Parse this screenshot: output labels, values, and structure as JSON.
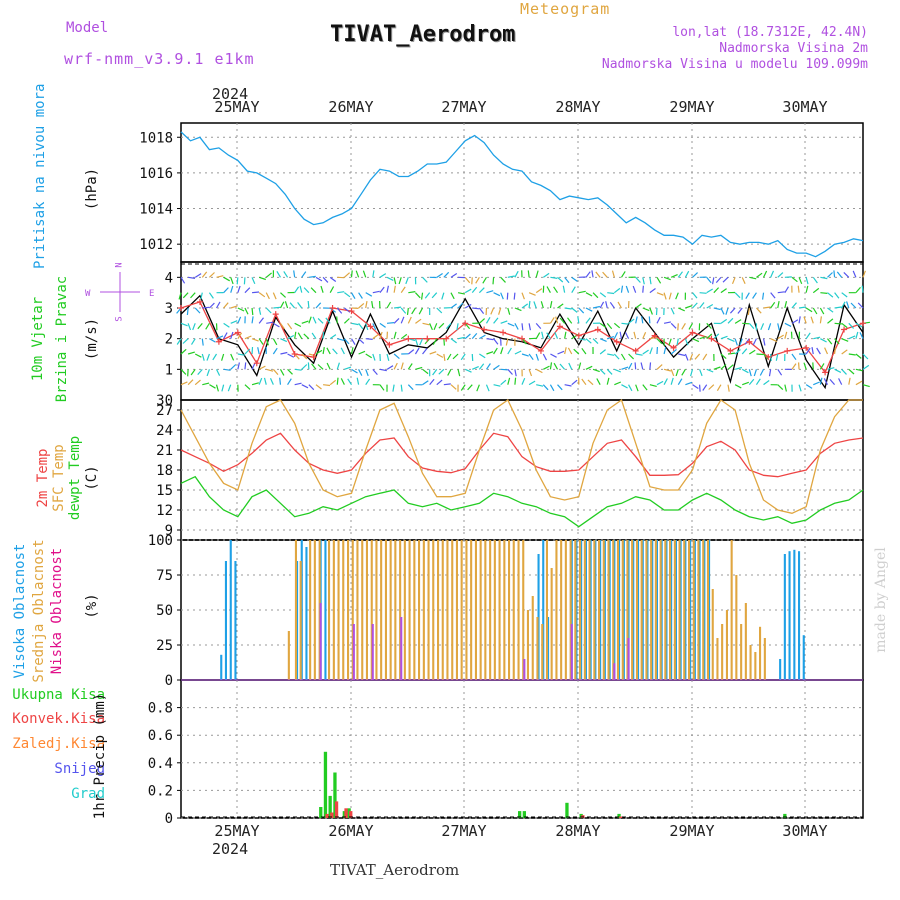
{
  "header": {
    "model_label": "Model",
    "model_name": "wrf-nmm_v3.9.1 e1km",
    "product": "Meteogram",
    "station": "TIVAT_Aerodrom",
    "lonlat": "lon,lat (18.7312E, 42.4N)",
    "elevation": "Nadmorska Visina 2m",
    "model_elevation": "Nadmorska Visina u modelu 109.099m",
    "footer_station": "TIVAT_Aerodrom",
    "credit": "made by Angel"
  },
  "colors": {
    "blue": "#1ea0e6",
    "green": "#22cc22",
    "red": "#ee4444",
    "orange": "#ff8833",
    "gold": "#e0a640",
    "purple": "#b050e0",
    "magenta": "#e0108a",
    "indigo": "#5555ee",
    "teal": "#22cccc"
  },
  "chart_data": [
    {
      "type": "line",
      "name": "pressure",
      "ylabel": "(hPa)",
      "panel_label": "Pritisak na nivou mora",
      "ylim": [
        1011,
        1018.8
      ],
      "yticks": [
        1012,
        1014,
        1016,
        1018
      ],
      "x_top_year": "2024",
      "x_labels": [
        "25MAY",
        "26MAY",
        "27MAY",
        "28MAY",
        "29MAY",
        "30MAY"
      ],
      "x_bottom_year": "2024",
      "x": [
        0,
        2,
        4,
        6,
        8,
        10,
        12,
        14,
        16,
        18,
        20,
        22,
        24,
        26,
        28,
        30,
        32,
        34,
        36,
        38,
        40,
        42,
        44,
        46,
        48,
        50,
        52,
        54,
        56,
        58,
        60,
        62,
        64,
        66,
        68,
        70,
        72,
        74,
        76,
        78,
        80,
        82,
        84,
        86,
        88,
        90,
        92,
        94,
        96,
        98,
        100,
        102,
        104,
        106,
        108,
        110,
        112,
        114,
        116,
        118,
        120,
        122,
        124,
        126,
        128,
        130,
        132,
        134,
        136,
        138,
        140,
        142,
        144
      ],
      "series": [
        {
          "color": "#1ea0e6",
          "values": [
            1018.3,
            1017.8,
            1018.0,
            1017.3,
            1017.4,
            1017.0,
            1016.7,
            1016.1,
            1016.0,
            1015.7,
            1015.4,
            1014.8,
            1014.0,
            1013.4,
            1013.1,
            1013.2,
            1013.5,
            1013.7,
            1014.0,
            1014.8,
            1015.6,
            1016.2,
            1016.1,
            1015.8,
            1015.8,
            1016.1,
            1016.5,
            1016.5,
            1016.6,
            1017.2,
            1017.8,
            1018.1,
            1017.7,
            1017.0,
            1016.5,
            1016.2,
            1016.1,
            1015.5,
            1015.3,
            1015.0,
            1014.5,
            1014.7,
            1014.6,
            1014.5,
            1014.6,
            1014.2,
            1013.7,
            1013.2,
            1013.5,
            1013.2,
            1012.8,
            1012.5,
            1012.5,
            1012.4,
            1012.0,
            1012.5,
            1012.4,
            1012.5,
            1012.1,
            1012.0,
            1012.1,
            1012.1,
            1012.0,
            1012.2,
            1011.7,
            1011.5,
            1011.5,
            1011.3,
            1011.6,
            1012.0,
            1012.1,
            1012.3,
            1012.2
          ]
        }
      ]
    },
    {
      "type": "line",
      "name": "wind10m",
      "ylabel": "(m/s)",
      "panel_label_1": "10m Vjetar",
      "panel_label_2": "Brzina i Pravac",
      "compass": {
        "n": "N",
        "w": "W",
        "e": "E",
        "s": "S"
      },
      "ylim": [
        0,
        4.5
      ],
      "yticks": [
        1,
        2,
        3,
        4
      ],
      "y_bottom_label": "30",
      "x": [
        0,
        4,
        8,
        12,
        16,
        20,
        24,
        28,
        32,
        36,
        40,
        44,
        48,
        52,
        56,
        60,
        64,
        68,
        72,
        76,
        80,
        84,
        88,
        92,
        96,
        100,
        104,
        108,
        112,
        116,
        120,
        124,
        128,
        132,
        136,
        140,
        144
      ],
      "series": [
        {
          "color": "#000000",
          "values": [
            2.8,
            3.4,
            2.0,
            1.8,
            0.8,
            2.7,
            1.8,
            1.2,
            2.9,
            1.4,
            2.8,
            1.5,
            1.8,
            1.7,
            2.2,
            3.3,
            2.2,
            2.0,
            1.9,
            1.7,
            2.8,
            1.8,
            2.9,
            1.6,
            3.0,
            2.2,
            1.4,
            2.0,
            2.5,
            0.6,
            3.1,
            1.1,
            3.0,
            1.3,
            0.4,
            3.1,
            2.2
          ]
        },
        {
          "color": "#ee4444",
          "values": [
            3.0,
            3.2,
            1.9,
            2.2,
            1.2,
            2.8,
            1.5,
            1.4,
            3.0,
            2.9,
            2.4,
            1.8,
            2.0,
            2.0,
            2.0,
            2.5,
            2.3,
            2.2,
            2.0,
            1.6,
            2.4,
            2.1,
            2.3,
            1.9,
            1.6,
            2.1,
            1.7,
            2.2,
            2.0,
            1.6,
            1.9,
            1.4,
            1.6,
            1.7,
            0.9,
            2.3,
            2.5
          ]
        }
      ]
    },
    {
      "type": "line",
      "name": "temperature",
      "ylabel": "(C)",
      "panel_label_1": "2m Temp",
      "panel_label_2": "SFC Temp",
      "panel_label_3": "dewpt Temp",
      "ylim": [
        7.5,
        28.5
      ],
      "yticks": [
        9,
        12,
        15,
        18,
        21,
        24,
        27
      ],
      "x": [
        0,
        3,
        6,
        9,
        12,
        15,
        18,
        21,
        24,
        27,
        30,
        33,
        36,
        39,
        42,
        45,
        48,
        51,
        54,
        57,
        60,
        63,
        66,
        69,
        72,
        75,
        78,
        81,
        84,
        87,
        90,
        93,
        96,
        99,
        102,
        105,
        108,
        111,
        114,
        117,
        120,
        123,
        126,
        129,
        132,
        135,
        138,
        141,
        144
      ],
      "series": [
        {
          "color": "#ee4444",
          "values": [
            21.0,
            20.0,
            19.0,
            17.8,
            18.8,
            20.5,
            22.5,
            23.5,
            21.0,
            19.0,
            18.0,
            17.5,
            18.0,
            20.5,
            22.5,
            22.8,
            20.0,
            18.3,
            17.8,
            17.6,
            18.2,
            21.0,
            23.5,
            23.0,
            20.0,
            18.5,
            17.8,
            17.8,
            18.0,
            20.0,
            22.0,
            22.5,
            20.0,
            17.2,
            17.2,
            17.3,
            19.0,
            21.5,
            22.3,
            21.0,
            18.0,
            17.2,
            17.0,
            17.5,
            18.0,
            20.5,
            22.0,
            22.5,
            22.8
          ]
        },
        {
          "color": "#e0a640",
          "values": [
            27.0,
            23.0,
            19.0,
            16.0,
            15.0,
            22.0,
            27.5,
            28.5,
            25.0,
            19.0,
            15.0,
            14.0,
            14.5,
            21.0,
            27.0,
            28.0,
            23.0,
            17.5,
            14.0,
            14.0,
            14.5,
            21.0,
            27.0,
            28.5,
            24.0,
            18.0,
            14.0,
            13.5,
            14.0,
            22.0,
            27.0,
            28.5,
            22.0,
            15.5,
            15.0,
            15.0,
            18.0,
            25.0,
            28.5,
            27.0,
            19.0,
            13.5,
            12.0,
            11.5,
            12.5,
            21.0,
            26.0,
            28.5,
            28.5
          ]
        },
        {
          "color": "#22cc22",
          "values": [
            16.0,
            17.0,
            14.0,
            12.0,
            11.0,
            14.0,
            15.0,
            13.0,
            11.0,
            11.5,
            12.5,
            12.0,
            13.0,
            14.0,
            14.5,
            15.0,
            13.0,
            12.5,
            13.0,
            12.0,
            12.5,
            13.0,
            14.5,
            14.0,
            13.0,
            12.5,
            11.5,
            11.0,
            9.5,
            11.0,
            12.5,
            13.0,
            14.0,
            13.5,
            12.0,
            12.0,
            13.5,
            14.5,
            13.5,
            12.0,
            11.0,
            10.5,
            11.0,
            10.0,
            10.5,
            12.0,
            13.0,
            13.5,
            15.0
          ]
        }
      ]
    },
    {
      "type": "bar",
      "name": "cloud_cover",
      "ylabel": "(%)",
      "panel_label_1": "Visoka Oblacnost",
      "panel_label_2": "Srednja Oblacnost",
      "panel_label_3": "Niska Oblacnost",
      "ylim": [
        0,
        100
      ],
      "yticks": [
        0,
        25,
        50,
        75,
        100
      ],
      "series": [
        {
          "name": "Visoka Oblacnost",
          "color": "#1ea0e6",
          "x": [
            8.5,
            9.5,
            10.5,
            11.5,
            24.5,
            25.5,
            26.5,
            29.5,
            30.5,
            75.5,
            76.5,
            77.5,
            82.5,
            83.5,
            84.5,
            85.5,
            86.5,
            87.5,
            88.5,
            89.5,
            90.5,
            91.5,
            92.5,
            93.5,
            94.5,
            95.5,
            96.5,
            97.5,
            98.5,
            99.5,
            100.5,
            101.5,
            102.5,
            103.5,
            104.5,
            105.5,
            106.5,
            107.5,
            108.5,
            109.5,
            110.5,
            111.5,
            126.5,
            127.5,
            128.5,
            129.5,
            130.5,
            131.5
          ],
          "values": [
            18,
            85,
            100,
            85,
            85,
            100,
            95,
            100,
            100,
            90,
            100,
            45,
            100,
            100,
            100,
            100,
            100,
            100,
            100,
            100,
            100,
            100,
            100,
            100,
            100,
            100,
            100,
            100,
            100,
            100,
            100,
            100,
            100,
            100,
            100,
            100,
            100,
            100,
            100,
            100,
            100,
            100,
            15,
            90,
            92,
            93,
            92,
            32
          ]
        },
        {
          "name": "Srednja Oblacnost",
          "color": "#e0a640",
          "x": [
            22.5,
            24,
            25,
            27,
            28,
            29,
            31,
            32,
            33,
            34,
            35,
            36,
            37,
            38,
            39,
            40,
            41,
            42,
            43,
            44,
            45,
            46,
            47,
            48,
            49,
            50,
            51,
            52,
            53,
            54,
            55,
            56,
            57,
            58,
            59,
            60,
            61,
            62,
            63,
            64,
            65,
            66,
            67,
            68,
            69,
            70,
            71,
            72,
            73,
            74,
            75,
            76,
            77,
            78,
            79,
            80,
            81,
            82,
            83,
            84,
            85,
            86,
            87,
            88,
            89,
            90,
            91,
            92,
            93,
            94,
            95,
            96,
            97,
            98,
            99,
            100,
            101,
            102,
            103,
            104,
            105,
            106,
            107,
            108,
            109,
            110,
            111,
            112,
            113,
            114,
            115,
            116,
            117,
            118,
            119,
            120,
            121,
            122,
            123
          ],
          "values": [
            35,
            100,
            85,
            100,
            100,
            100,
            100,
            100,
            100,
            100,
            100,
            100,
            100,
            100,
            100,
            100,
            100,
            100,
            100,
            100,
            100,
            100,
            100,
            100,
            100,
            100,
            100,
            100,
            100,
            100,
            100,
            100,
            100,
            100,
            100,
            100,
            100,
            100,
            100,
            100,
            100,
            100,
            100,
            100,
            100,
            100,
            100,
            100,
            50,
            60,
            45,
            40,
            100,
            80,
            100,
            100,
            100,
            100,
            100,
            100,
            100,
            100,
            100,
            100,
            100,
            100,
            100,
            100,
            100,
            100,
            100,
            100,
            100,
            100,
            100,
            100,
            100,
            100,
            100,
            100,
            100,
            100,
            100,
            100,
            100,
            100,
            100,
            65,
            30,
            40,
            50,
            100,
            75,
            40,
            55,
            25,
            20,
            38,
            30
          ]
        },
        {
          "name": "Niska Oblacnost",
          "color": "#b050e0",
          "x": [
            29.5,
            36.5,
            40.5,
            46.5,
            72.5,
            82.5,
            91.5,
            94.5
          ],
          "values": [
            55,
            40,
            40,
            45,
            15,
            40,
            12,
            30
          ]
        }
      ]
    },
    {
      "type": "bar",
      "name": "precipitation",
      "ylabel": "1hr Precip (mm)",
      "legend": [
        "Ukupna Kisa",
        "Konvek.Kisa",
        "Zaledj.Kisa",
        "Snijeg",
        "Grad"
      ],
      "legend_colors": [
        "#22cc22",
        "#ee4444",
        "#ff8833",
        "#5555ee",
        "#22cccc"
      ],
      "ylim": [
        0,
        1.0
      ],
      "yticks": [
        0,
        0.2,
        0.4,
        0.6,
        0.8
      ],
      "series": [
        {
          "name": "Ukupna Kisa",
          "color": "#22cc22",
          "x": [
            29.5,
            30.5,
            31.5,
            32.5,
            34.5,
            35.5,
            71.5,
            72.5,
            81.5,
            84.5,
            92.5,
            127.5
          ],
          "values": [
            0.08,
            0.48,
            0.16,
            0.33,
            0.05,
            0.07,
            0.05,
            0.05,
            0.11,
            0.03,
            0.03,
            0.03
          ]
        },
        {
          "name": "Konvek.Kisa",
          "color": "#ee4444",
          "x": [
            30.5,
            31.5,
            32.5,
            34.5,
            35.5,
            84.5,
            92.5
          ],
          "values": [
            0.03,
            0.04,
            0.12,
            0.07,
            0.05,
            0.02,
            0.01
          ]
        }
      ]
    }
  ]
}
